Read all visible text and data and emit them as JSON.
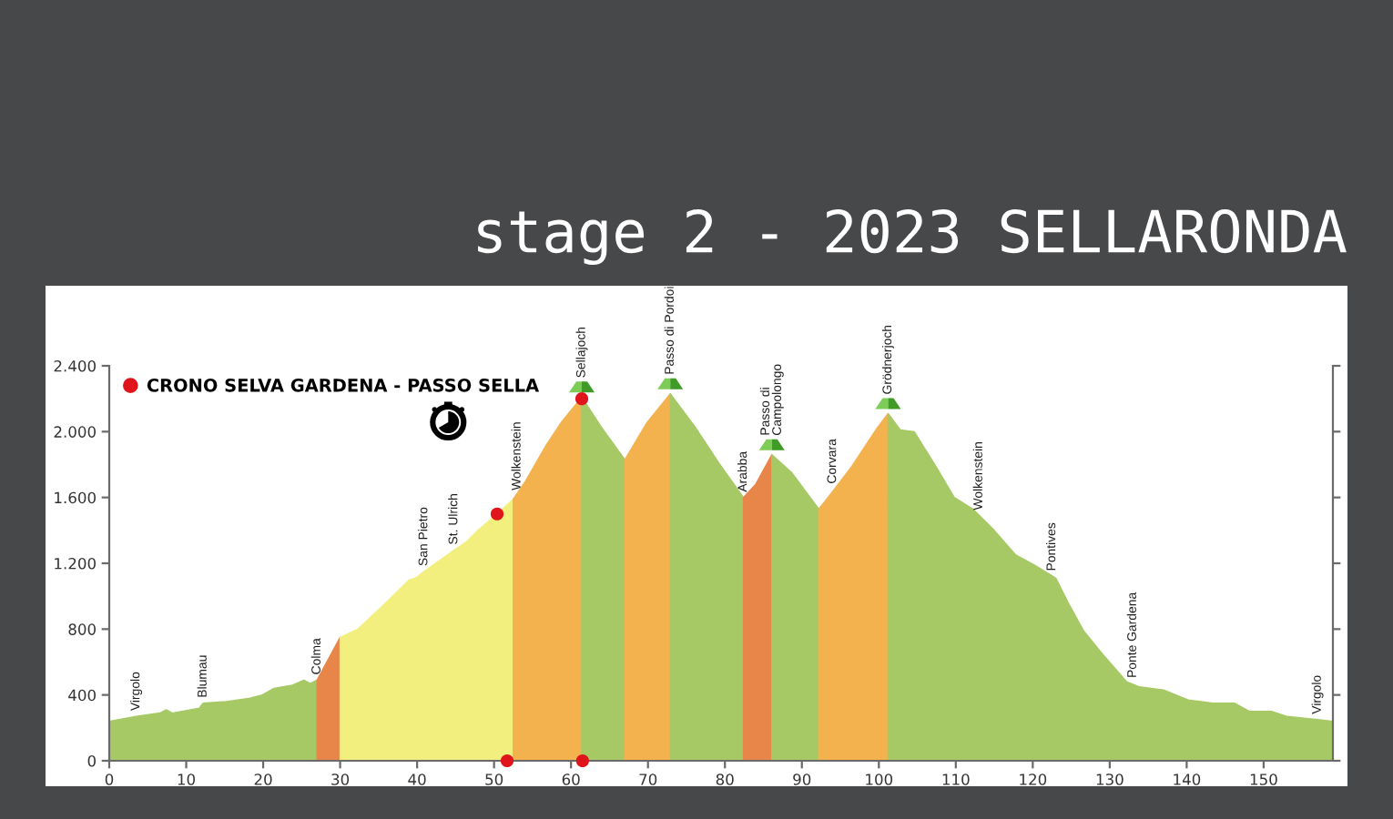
{
  "chart_data": {
    "type": "area",
    "title": "stage 2 - 2023 SELLARONDA",
    "series": [
      {
        "color": "#a6c966",
        "x": [
          0,
          3.5,
          6.6,
          7.4,
          8.2,
          11.7,
          12.2,
          15.2,
          18.3,
          19.9,
          21.4,
          23.8,
          25.3,
          26.1,
          27
        ],
        "values": [
          240,
          270,
          290,
          310,
          290,
          320,
          350,
          360,
          380,
          400,
          440,
          460,
          490,
          470,
          490
        ]
      },
      {
        "color": "#e8864a",
        "x": [
          27,
          30
        ],
        "values": [
          490,
          750
        ]
      },
      {
        "color": "#f2ef7e",
        "x": [
          30,
          32.3,
          35.5,
          39,
          39.8,
          40.9,
          43.3,
          44.8,
          46.4,
          47.9,
          50.4,
          52.5
        ],
        "values": [
          750,
          800,
          940,
          1100,
          1110,
          1150,
          1230,
          1280,
          1330,
          1400,
          1500,
          1590
        ]
      },
      {
        "color": "#f3b24e",
        "x": [
          52.5,
          54.1,
          56.8,
          58.8,
          61.4
        ],
        "values": [
          1590,
          1700,
          1920,
          2060,
          2210
        ]
      },
      {
        "color": "#a6c966",
        "x": [
          61.4,
          63.9,
          67
        ],
        "values": [
          2210,
          2030,
          1830
        ]
      },
      {
        "color": "#f3b24e",
        "x": [
          67,
          69.8,
          72.9
        ],
        "values": [
          1830,
          2050,
          2230
        ]
      },
      {
        "color": "#a6c966",
        "x": [
          72.9,
          76.1,
          79.2,
          82.4
        ],
        "values": [
          2230,
          2030,
          1810,
          1600
        ]
      },
      {
        "color": "#e8864a",
        "x": [
          82.4,
          84,
          86.1
        ],
        "values": [
          1600,
          1680,
          1860
        ]
      },
      {
        "color": "#a6c966",
        "x": [
          86.1,
          88.7,
          92.2
        ],
        "values": [
          1860,
          1750,
          1530
        ]
      },
      {
        "color": "#f3b24e",
        "x": [
          92.2,
          93.4,
          96.5,
          99.6,
          101.2
        ],
        "values": [
          1530,
          1600,
          1790,
          2010,
          2110
        ]
      },
      {
        "color": "#a6c966",
        "x": [
          101.2,
          102.8,
          104.6,
          107.4,
          109.8,
          112.2,
          115,
          117.8,
          120.2,
          123,
          124.6,
          126.6,
          129.4,
          132.2,
          133.8,
          137,
          140.2,
          143.4,
          146.2,
          148.2,
          151,
          153,
          157,
          159
        ],
        "values": [
          2110,
          2010,
          2000,
          1790,
          1600,
          1530,
          1400,
          1250,
          1190,
          1110,
          960,
          790,
          630,
          480,
          450,
          430,
          370,
          350,
          350,
          300,
          300,
          270,
          250,
          240
        ]
      },
      {
        "type": "scatter",
        "name": "CRONO SELVA GARDENA - PASSO SELLA",
        "color": "#e0141b",
        "marker": "circle",
        "x": [
          50.4,
          61.4,
          51.7,
          61.5
        ],
        "values": [
          1500,
          2200,
          0,
          0
        ]
      }
    ],
    "xlim": [
      0,
      159
    ],
    "ylim": [
      0,
      2400
    ],
    "xticks": [
      0,
      10,
      20,
      30,
      40,
      50,
      60,
      70,
      80,
      90,
      100,
      110,
      120,
      130,
      140,
      150
    ],
    "yticks": [
      0,
      400,
      800,
      {
        "value": 1200,
        "label": "1.200"
      },
      {
        "value": 1600,
        "label": "1.600"
      },
      {
        "value": 2000,
        "label": "2.000"
      },
      {
        "value": 2400,
        "label": "2.400"
      }
    ],
    "legend": "top left",
    "annotations": [
      {
        "text": "Virgolo",
        "x": 3.5,
        "y": 270
      },
      {
        "text": "Blumau",
        "x": 12.2,
        "y": 350
      },
      {
        "text": "Colma",
        "x": 27,
        "y": 490
      },
      {
        "text": "San Pietro",
        "x": 40.9,
        "y": 1150
      },
      {
        "text": "St. Ulrich",
        "x": 44.8,
        "y": 1280
      },
      {
        "text": "Wolkenstein",
        "x": 53,
        "y": 1610
      },
      {
        "text": "Sellajoch",
        "x": 61.4,
        "y": 2210
      },
      {
        "text": "Passo di Pordoi",
        "x": 72.9,
        "y": 2230
      },
      {
        "text": "Arabba",
        "x": 82.4,
        "y": 1600
      },
      {
        "text": "Passo di\nCampolongo",
        "x": 86.1,
        "y": 1860
      },
      {
        "text": "Corvara",
        "x": 94,
        "y": 1650
      },
      {
        "text": "Grödnerjoch",
        "x": 101.2,
        "y": 2110
      },
      {
        "text": "Wolkenstein",
        "x": 113,
        "y": 1490
      },
      {
        "text": "Pontives",
        "x": 122.5,
        "y": 1120
      },
      {
        "text": "Ponte Gardena",
        "x": 133,
        "y": 470
      },
      {
        "text": "Virgolo",
        "x": 157,
        "y": 250
      }
    ]
  }
}
